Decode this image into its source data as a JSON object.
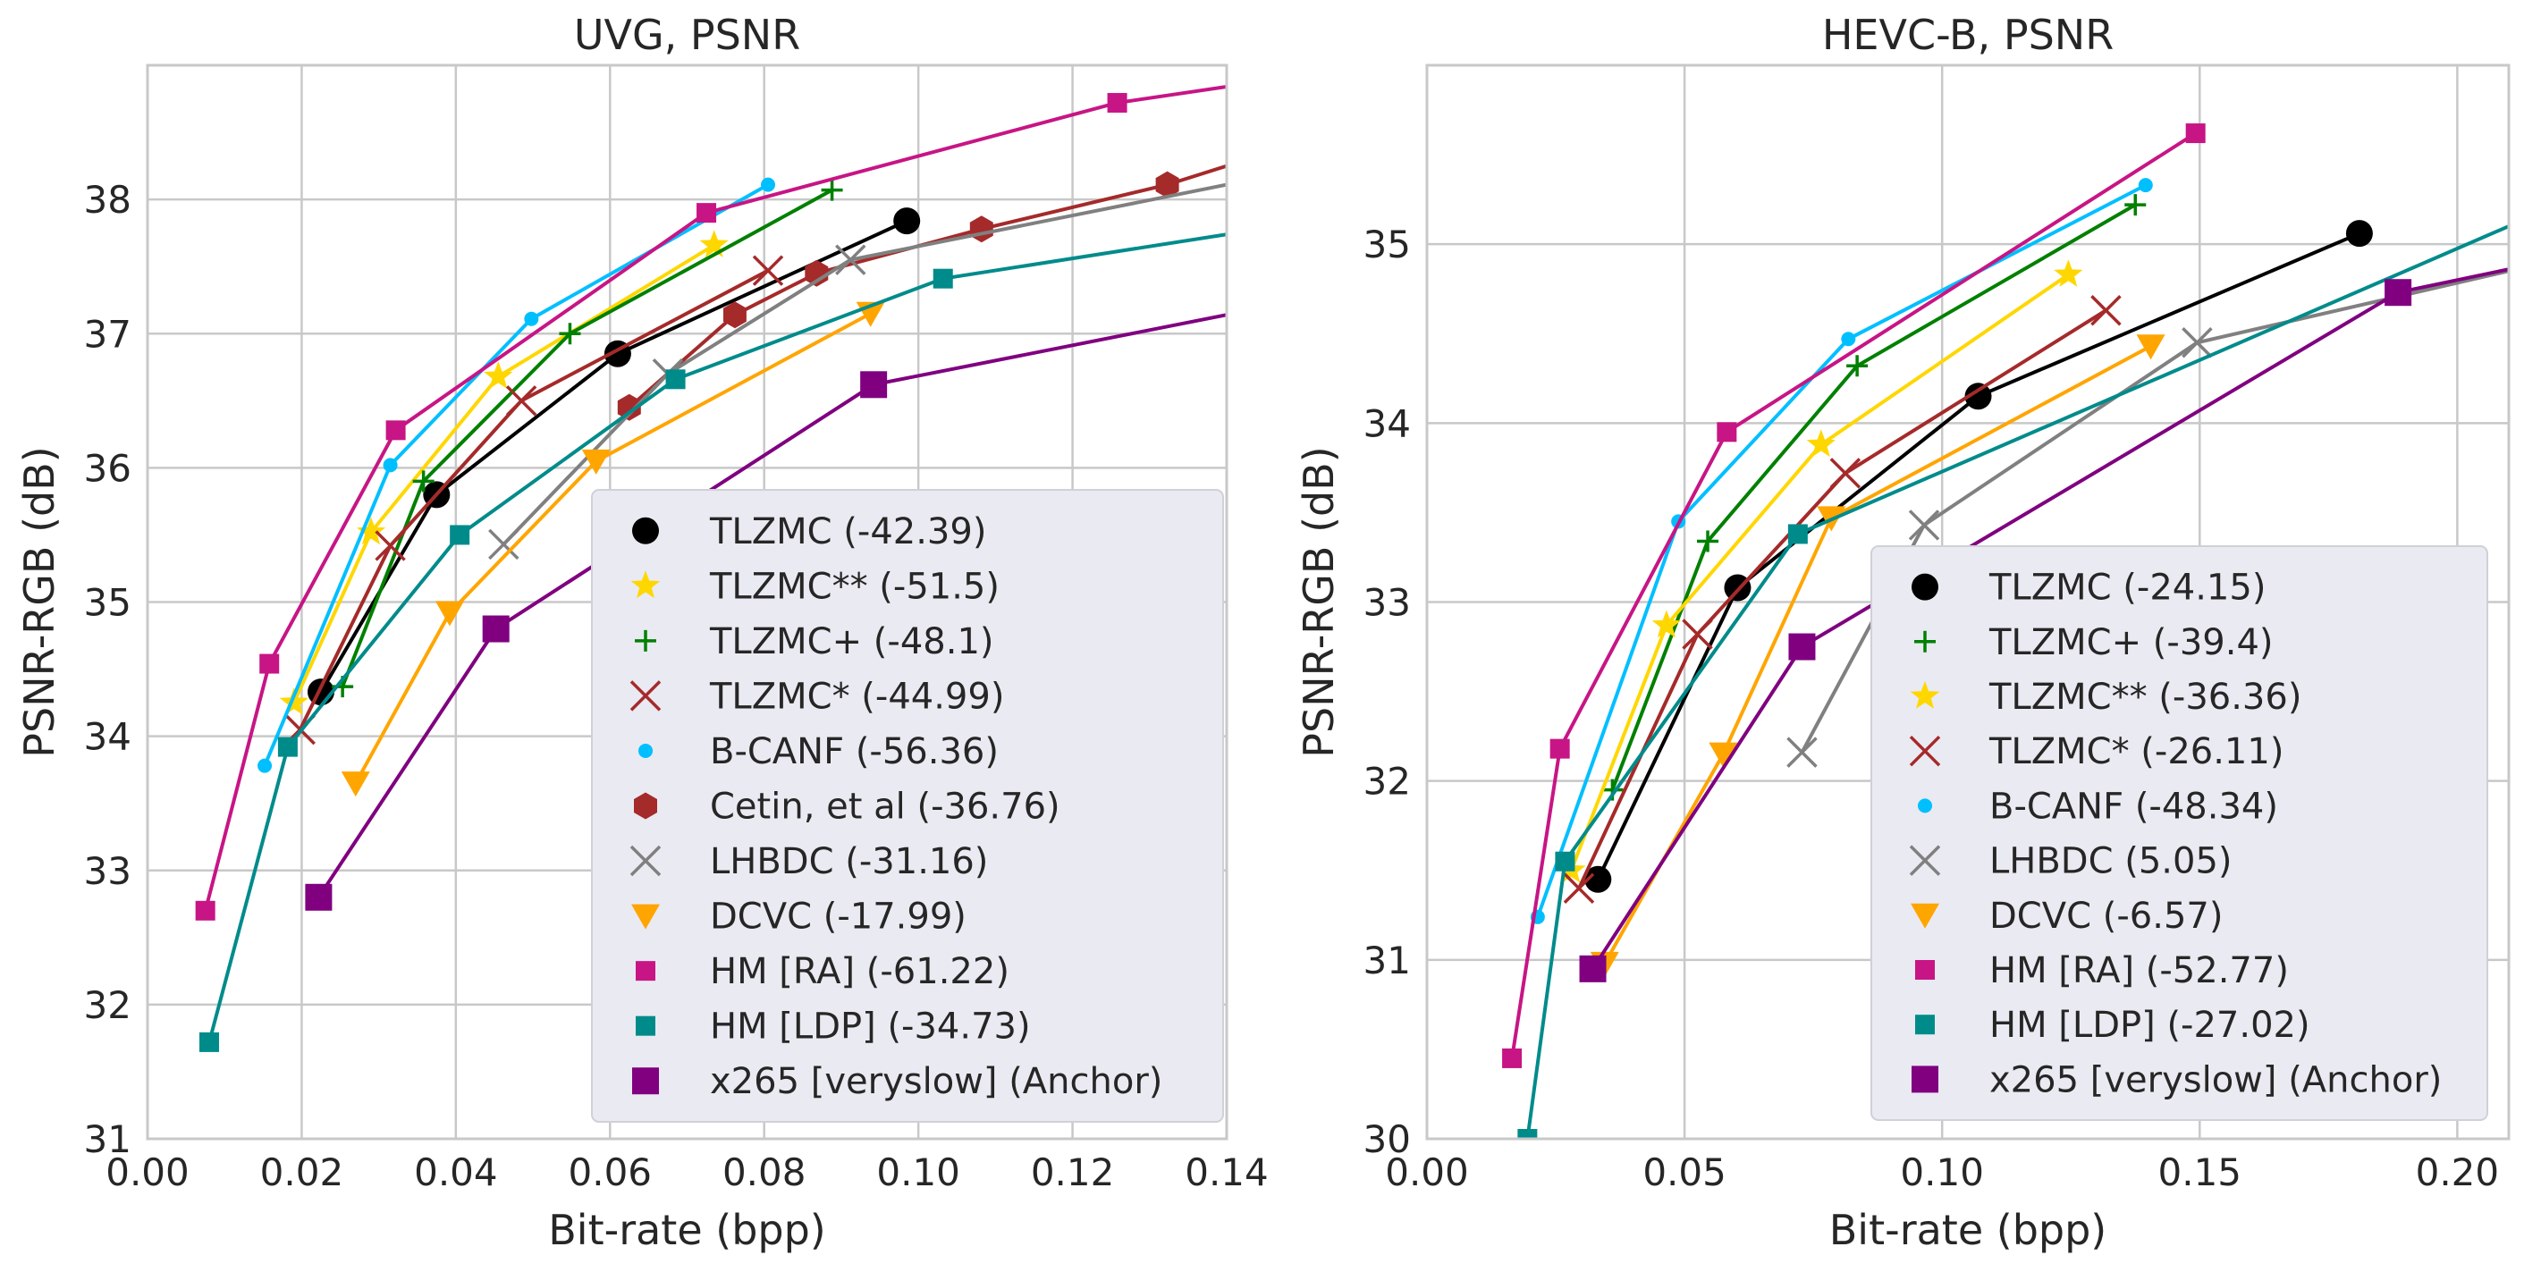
{
  "chart_data": [
    {
      "type": "line",
      "title": "UVG, PSNR",
      "xlabel": "Bit-rate (bpp)",
      "ylabel": "PSNR-RGB (dB)",
      "xlim": [
        0,
        0.14
      ],
      "ylim": [
        31,
        39
      ],
      "x_ticks": [
        "0.00",
        "0.02",
        "0.04",
        "0.06",
        "0.08",
        "0.10",
        "0.12",
        "0.14"
      ],
      "y_ticks": [
        "31",
        "32",
        "33",
        "34",
        "35",
        "36",
        "37",
        "38"
      ],
      "grid": true,
      "legend_position": "lower-right",
      "series": [
        {
          "name": "TLZMC (-42.39)",
          "color": "#000000",
          "marker": "circle",
          "points": [
            [
              0.0225,
              34.33
            ],
            [
              0.0375,
              35.8
            ],
            [
              0.061,
              36.85
            ],
            [
              0.0985,
              37.84
            ]
          ]
        },
        {
          "name": "TLZMC** (-51.5)",
          "color": "#FFD700",
          "marker": "star",
          "points": [
            [
              0.019,
              34.25
            ],
            [
              0.029,
              35.52
            ],
            [
              0.0455,
              36.68
            ],
            [
              0.0735,
              37.66
            ]
          ]
        },
        {
          "name": "TLZMC+ (-48.1)",
          "color": "#008000",
          "marker": "plus",
          "points": [
            [
              0.0253,
              34.37
            ],
            [
              0.0358,
              35.9
            ],
            [
              0.0548,
              37.0
            ],
            [
              0.0888,
              38.07
            ]
          ]
        },
        {
          "name": "TLZMC* (-44.99)",
          "color": "#A52A2A",
          "marker": "x",
          "points": [
            [
              0.0198,
              34.05
            ],
            [
              0.0315,
              35.42
            ],
            [
              0.0485,
              36.5
            ],
            [
              0.0805,
              37.47
            ]
          ]
        },
        {
          "name": "B-CANF (-56.36)",
          "color": "#00BFFF",
          "marker": "dot",
          "points": [
            [
              0.0152,
              33.78
            ],
            [
              0.0315,
              36.02
            ],
            [
              0.0498,
              37.11
            ],
            [
              0.0805,
              38.11
            ]
          ]
        },
        {
          "name": "Cetin, et al (-36.76)",
          "color": "#A52A2A",
          "marker": "hexagon",
          "points": [
            [
              0.0625,
              36.45
            ],
            [
              0.0762,
              37.14
            ],
            [
              0.0868,
              37.45
            ],
            [
              0.1082,
              37.78
            ],
            [
              0.1323,
              38.11
            ],
            [
              0.14,
              38.25
            ]
          ]
        },
        {
          "name": "LHBDC (-31.16)",
          "color": "#808080",
          "marker": "x",
          "points": [
            [
              0.0462,
              35.43
            ],
            [
              0.0675,
              36.7
            ],
            [
              0.0912,
              37.55
            ],
            [
              0.14,
              38.11
            ]
          ]
        },
        {
          "name": "DCVC (-17.99)",
          "color": "#FFA500",
          "marker": "triangle-down",
          "points": [
            [
              0.027,
              33.65
            ],
            [
              0.0392,
              34.92
            ],
            [
              0.0582,
              36.05
            ],
            [
              0.0938,
              37.15
            ]
          ]
        },
        {
          "name": "HM [RA] (-61.22)",
          "color": "#C71585",
          "marker": "square",
          "points": [
            [
              0.0075,
              32.7
            ],
            [
              0.0158,
              34.54
            ],
            [
              0.0322,
              36.28
            ],
            [
              0.0725,
              37.9
            ],
            [
              0.1258,
              38.72
            ],
            [
              0.14,
              38.84
            ]
          ]
        },
        {
          "name": "HM [LDP] (-34.73)",
          "color": "#008B8B",
          "marker": "square",
          "points": [
            [
              0.008,
              31.72
            ],
            [
              0.0182,
              33.92
            ],
            [
              0.0405,
              35.5
            ],
            [
              0.0685,
              36.66
            ],
            [
              0.1032,
              37.41
            ],
            [
              0.14,
              37.74
            ]
          ]
        },
        {
          "name": "x265 [veryslow] (Anchor)",
          "color": "#800080",
          "marker": "square-large",
          "points": [
            [
              0.0222,
              32.8
            ],
            [
              0.0452,
              34.8
            ],
            [
              0.0942,
              36.62
            ],
            [
              0.14,
              37.14
            ]
          ]
        }
      ]
    },
    {
      "type": "line",
      "title": "HEVC-B, PSNR",
      "xlabel": "Bit-rate (bpp)",
      "ylabel": "PSNR-RGB (dB)",
      "xlim": [
        0,
        0.21
      ],
      "ylim": [
        30,
        36
      ],
      "x_ticks": [
        "0.00",
        "0.05",
        "0.10",
        "0.15",
        "0.20"
      ],
      "y_ticks": [
        "30",
        "31",
        "32",
        "33",
        "34",
        "35"
      ],
      "grid": true,
      "legend_position": "lower-right",
      "series": [
        {
          "name": "TLZMC (-24.15)",
          "color": "#000000",
          "marker": "circle",
          "points": [
            [
              0.0332,
              31.45
            ],
            [
              0.0603,
              33.08
            ],
            [
              0.107,
              34.15
            ],
            [
              0.181,
              35.06
            ]
          ]
        },
        {
          "name": "TLZMC+ (-39.4)",
          "color": "#008000",
          "marker": "plus",
          "points": [
            [
              0.036,
              31.95
            ],
            [
              0.0545,
              33.34
            ],
            [
              0.0835,
              34.32
            ],
            [
              0.1375,
              35.22
            ]
          ]
        },
        {
          "name": "TLZMC** (-36.36)",
          "color": "#FFD700",
          "marker": "star",
          "points": [
            [
              0.028,
              31.5
            ],
            [
              0.0465,
              32.87
            ],
            [
              0.0765,
              33.88
            ],
            [
              0.1245,
              34.83
            ]
          ]
        },
        {
          "name": "TLZMC* (-26.11)",
          "color": "#A52A2A",
          "marker": "x",
          "points": [
            [
              0.0295,
              31.4
            ],
            [
              0.0525,
              32.82
            ],
            [
              0.0812,
              33.72
            ],
            [
              0.1318,
              34.63
            ]
          ]
        },
        {
          "name": "B-CANF (-48.34)",
          "color": "#00BFFF",
          "marker": "dot",
          "points": [
            [
              0.0215,
              31.24
            ],
            [
              0.0488,
              33.45
            ],
            [
              0.0818,
              34.47
            ],
            [
              0.1395,
              35.33
            ]
          ]
        },
        {
          "name": "LHBDC (5.05)",
          "color": "#808080",
          "marker": "x",
          "points": [
            [
              0.0728,
              32.16
            ],
            [
              0.0965,
              33.43
            ],
            [
              0.1495,
              34.45
            ],
            [
              0.21,
              34.85
            ]
          ]
        },
        {
          "name": "DCVC (-6.57)",
          "color": "#FFA500",
          "marker": "triangle-down",
          "points": [
            [
              0.0345,
              30.98
            ],
            [
              0.0575,
              32.15
            ],
            [
              0.0785,
              33.47
            ],
            [
              0.1405,
              34.43
            ]
          ]
        },
        {
          "name": "HM [RA] (-52.77)",
          "color": "#C71585",
          "marker": "square",
          "points": [
            [
              0.0165,
              30.45
            ],
            [
              0.0258,
              32.18
            ],
            [
              0.0582,
              33.95
            ],
            [
              0.1492,
              35.62
            ]
          ]
        },
        {
          "name": "HM [LDP] (-27.02)",
          "color": "#008B8B",
          "marker": "square",
          "points": [
            [
              0.0195,
              30.0
            ],
            [
              0.0268,
              31.55
            ],
            [
              0.072,
              33.38
            ],
            [
              0.21,
              35.1
            ]
          ]
        },
        {
          "name": "x265 [veryslow] (Anchor)",
          "color": "#800080",
          "marker": "square-large",
          "points": [
            [
              0.0322,
              30.95
            ],
            [
              0.0728,
              32.75
            ],
            [
              0.1885,
              34.73
            ],
            [
              0.21,
              34.86
            ]
          ]
        }
      ]
    }
  ]
}
